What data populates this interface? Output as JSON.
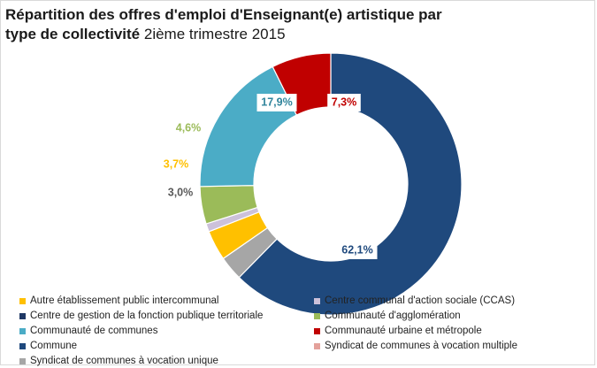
{
  "chart_data": {
    "type": "pie",
    "variant": "donut",
    "title": "Répartition des offres d'emploi d'Enseignant(e) artistique par type de collectivité",
    "subtitle": "2ième trimestre 2015",
    "order": [
      "Commune",
      "Syndicat de communes à vocation multiple",
      "Syndicat de communes à vocation unique",
      "Autre établissement public intercommunal",
      "Centre communal d'action sociale (CCAS)",
      "Communauté d'agglomération",
      "Communauté de communes",
      "Communauté urbaine et métropole"
    ],
    "slices": [
      {
        "label": "Commune",
        "value": 62.1,
        "display": "62,1%",
        "color": "#1f497d"
      },
      {
        "label": "Syndicat de communes à vocation multiple",
        "value": 0.0,
        "display": "",
        "color": "#e4a19b"
      },
      {
        "label": "Syndicat de communes à vocation unique",
        "value": 3.0,
        "display": "3,0%",
        "color": "#a6a6a6"
      },
      {
        "label": "Autre établissement public intercommunal",
        "value": 3.7,
        "display": "3,7%",
        "color": "#ffc000"
      },
      {
        "label": "Centre communal d'action sociale (CCAS)",
        "value": 1.0,
        "display": "",
        "color": "#ccc1da"
      },
      {
        "label": "Communauté d'agglomération",
        "value": 4.6,
        "display": "4,6%",
        "color": "#9bbb59"
      },
      {
        "label": "Communauté de communes",
        "value": 17.9,
        "display": "17,9%",
        "color": "#4bacc6"
      },
      {
        "label": "Communauté urbaine et métropole",
        "value": 7.3,
        "display": "7,3%",
        "color": "#c00000"
      }
    ],
    "legend": [
      {
        "label": "Autre établissement public intercommunal",
        "color": "#ffc000"
      },
      {
        "label": "Centre communal d'action sociale (CCAS)",
        "color": "#ccc1da"
      },
      {
        "label": "Centre de gestion de la fonction publique territoriale",
        "color": "#1f3864"
      },
      {
        "label": "Communauté d'agglomération",
        "color": "#9bbb59"
      },
      {
        "label": "Communauté de communes",
        "color": "#4bacc6"
      },
      {
        "label": "Communauté urbaine et métropole",
        "color": "#c00000"
      },
      {
        "label": "Commune",
        "color": "#1f497d"
      },
      {
        "label": "Syndicat de communes à vocation multiple",
        "color": "#e4a19b"
      },
      {
        "label": "Syndicat de communes à vocation unique",
        "color": "#a6a6a6"
      }
    ]
  },
  "title": {
    "bold_part_1": "Répartition des offres d'emploi d'Enseignant(e) artistique par",
    "bold_part_2": "type de collectivité",
    "normal_part": "2ième trimestre 2015"
  }
}
